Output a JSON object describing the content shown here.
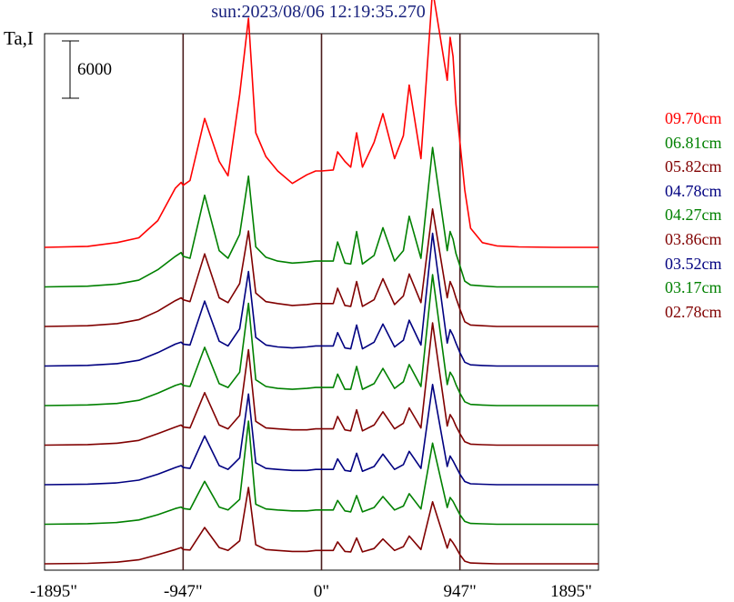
{
  "chart_data": {
    "type": "line",
    "title": "sun:2023/08/06 12:19:35.270",
    "ylabel": "Ta,I",
    "scale_bar_label": "6000",
    "x_ticks": [
      "-1895\"",
      "-947\"",
      "0\"",
      "947\"",
      "1895\""
    ],
    "x_tick_values": [
      -1895,
      -947,
      0,
      947,
      1895
    ],
    "xlim": [
      -1895,
      1895
    ],
    "vertical_markers": [
      -947,
      0,
      947
    ],
    "grid": false,
    "legend_placement": "right",
    "x": [
      -1895,
      -1600,
      -1400,
      -1250,
      -1120,
      -1000,
      -960,
      -947,
      -900,
      -800,
      -700,
      -640,
      -560,
      -500,
      -450,
      -380,
      -300,
      -200,
      -100,
      -40,
      0,
      80,
      110,
      160,
      200,
      240,
      280,
      360,
      420,
      500,
      560,
      600,
      680,
      760,
      860,
      880,
      900,
      920,
      947,
      980,
      1020,
      1100,
      1200,
      1350,
      1600,
      1895
    ],
    "series": [
      {
        "name": "09.70cm",
        "color": "#ff0000",
        "values": [
          0,
          100,
          500,
          1000,
          2800,
          6200,
          6800,
          6500,
          7000,
          13500,
          9000,
          7500,
          16000,
          24000,
          12000,
          9500,
          8000,
          6700,
          7600,
          8000,
          8000,
          8100,
          10000,
          9000,
          8400,
          12000,
          8400,
          11000,
          14000,
          9300,
          11700,
          17000,
          9300,
          27000,
          17500,
          22000,
          20000,
          15000,
          11000,
          6000,
          2000,
          500,
          150,
          50,
          0,
          0
        ]
      },
      {
        "name": "06.81cm",
        "color": "#008000",
        "values": [
          0,
          80,
          300,
          700,
          1800,
          3200,
          3600,
          3200,
          3000,
          9600,
          3800,
          3000,
          5500,
          11600,
          4200,
          3100,
          2700,
          2500,
          2600,
          2700,
          2700,
          2700,
          4700,
          2500,
          2400,
          5800,
          2400,
          3300,
          6200,
          2700,
          3800,
          7400,
          3000,
          14600,
          3800,
          5800,
          5000,
          3500,
          2200,
          600,
          200,
          100,
          0,
          0,
          0,
          0
        ]
      },
      {
        "name": "05.82cm",
        "color": "#800000",
        "values": [
          0,
          80,
          300,
          700,
          1600,
          2700,
          3000,
          2800,
          2600,
          7600,
          3000,
          2500,
          4500,
          10000,
          3500,
          2600,
          2400,
          2200,
          2300,
          2400,
          2400,
          2400,
          4000,
          2200,
          2100,
          4700,
          2100,
          2800,
          5000,
          2300,
          3200,
          5500,
          2500,
          12300,
          3000,
          4700,
          4000,
          3000,
          1800,
          500,
          150,
          80,
          0,
          0,
          0,
          0
        ]
      },
      {
        "name": "04.78cm",
        "color": "#000080",
        "values": [
          0,
          70,
          250,
          600,
          1400,
          2300,
          2500,
          2300,
          2200,
          6800,
          2600,
          2100,
          3900,
          9900,
          3000,
          2200,
          2000,
          1900,
          2000,
          2100,
          2100,
          2100,
          3500,
          1900,
          1800,
          4300,
          1800,
          2500,
          4400,
          2000,
          2700,
          4800,
          2200,
          13900,
          2400,
          3800,
          3200,
          2400,
          1400,
          400,
          120,
          60,
          0,
          0,
          0,
          0
        ]
      },
      {
        "name": "04.27cm",
        "color": "#008000",
        "values": [
          0,
          70,
          220,
          550,
          1300,
          2100,
          2300,
          2100,
          2000,
          6100,
          2300,
          1900,
          3500,
          10700,
          2700,
          2000,
          1800,
          1700,
          1800,
          1900,
          1900,
          1900,
          3300,
          1700,
          1700,
          4100,
          1700,
          2300,
          3900,
          1800,
          2500,
          4300,
          2000,
          13700,
          2200,
          3500,
          3000,
          2200,
          1300,
          400,
          120,
          60,
          0,
          0,
          0,
          0
        ]
      },
      {
        "name": "03.86cm",
        "color": "#800000",
        "values": [
          0,
          60,
          200,
          500,
          1200,
          1900,
          2100,
          1900,
          1800,
          5500,
          2100,
          1700,
          3100,
          10000,
          2500,
          1800,
          1700,
          1600,
          1600,
          1700,
          1700,
          1700,
          3000,
          1600,
          1500,
          3700,
          1500,
          2100,
          3500,
          1700,
          2300,
          3900,
          1800,
          12800,
          2000,
          3200,
          2700,
          2000,
          1200,
          350,
          100,
          50,
          0,
          0,
          0,
          0
        ]
      },
      {
        "name": "03.52cm",
        "color": "#000080",
        "values": [
          0,
          60,
          190,
          480,
          1100,
          1800,
          2000,
          1800,
          1700,
          5100,
          2000,
          1600,
          2800,
          9500,
          2300,
          1700,
          1600,
          1500,
          1500,
          1600,
          1600,
          1600,
          2700,
          1500,
          1400,
          3300,
          1400,
          1900,
          3200,
          1600,
          2100,
          3500,
          1700,
          10500,
          1900,
          3000,
          2500,
          1900,
          1100,
          330,
          100,
          50,
          0,
          0,
          0,
          0
        ]
      },
      {
        "name": "03.17cm",
        "color": "#008000",
        "values": [
          0,
          55,
          180,
          450,
          1000,
          1650,
          1800,
          1650,
          1550,
          4500,
          1800,
          1500,
          2600,
          10800,
          2100,
          1600,
          1500,
          1400,
          1400,
          1500,
          1500,
          1500,
          2500,
          1400,
          1300,
          3000,
          1300,
          1750,
          2900,
          1500,
          1900,
          3200,
          1600,
          8500,
          1750,
          2800,
          2400,
          1800,
          1000,
          300,
          90,
          45,
          0,
          0,
          0,
          0
        ]
      },
      {
        "name": "02.78cm",
        "color": "#800000",
        "values": [
          0,
          50,
          170,
          420,
          950,
          1500,
          1700,
          1500,
          1450,
          3800,
          1700,
          1400,
          2400,
          8000,
          2000,
          1500,
          1400,
          1300,
          1300,
          1400,
          1400,
          1400,
          2300,
          1300,
          1250,
          2700,
          1250,
          1600,
          2600,
          1400,
          1800,
          2900,
          1500,
          6500,
          1650,
          2600,
          2200,
          1700,
          950,
          280,
          85,
          40,
          0,
          0,
          0,
          0
        ]
      }
    ]
  }
}
